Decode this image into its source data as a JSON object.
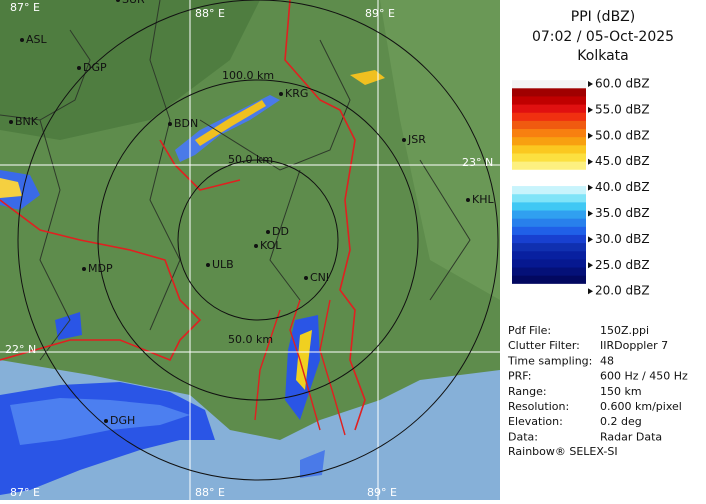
{
  "header": {
    "title": "PPI (dBZ)",
    "time": "07:02 / 05-Oct-2025",
    "station": "Kolkata"
  },
  "legend": {
    "labels": [
      "60.0 dBZ",
      "55.0 dBZ",
      "50.0 dBZ",
      "45.0 dBZ",
      "40.0 dBZ",
      "35.0 dBZ",
      "30.0 dBZ",
      "25.0 dBZ",
      "20.0 dBZ"
    ]
  },
  "info": {
    "rows": [
      [
        "Pdf File:",
        "150Z.ppi"
      ],
      [
        "Clutter Filter:",
        "IIRDoppler 7"
      ],
      [
        "Time sampling:",
        "48"
      ],
      [
        "PRF:",
        "600 Hz / 450 Hz"
      ],
      [
        "Range:",
        "150 km"
      ],
      [
        "Resolution:",
        "0.600 km/pixel"
      ],
      [
        "Elevation:",
        "0.2 deg"
      ],
      [
        "Data:",
        "Radar Data"
      ]
    ],
    "footer": "Rainbow® SELEX-SI"
  },
  "map": {
    "grid_labels": [
      "87° E",
      "88° E",
      "89° E",
      "23° N",
      "22° N",
      "87° E",
      "88° E",
      "89° E"
    ],
    "range_labels": [
      "100.0 km",
      "50.0 km",
      "50.0 km"
    ],
    "cities": [
      "SUR",
      "ASL",
      "DGP",
      "BNK",
      "BDN",
      "KRG",
      "JSR",
      "KHL",
      "DD",
      "KOL",
      "ULB",
      "MDP",
      "CNI",
      "DGH"
    ]
  }
}
